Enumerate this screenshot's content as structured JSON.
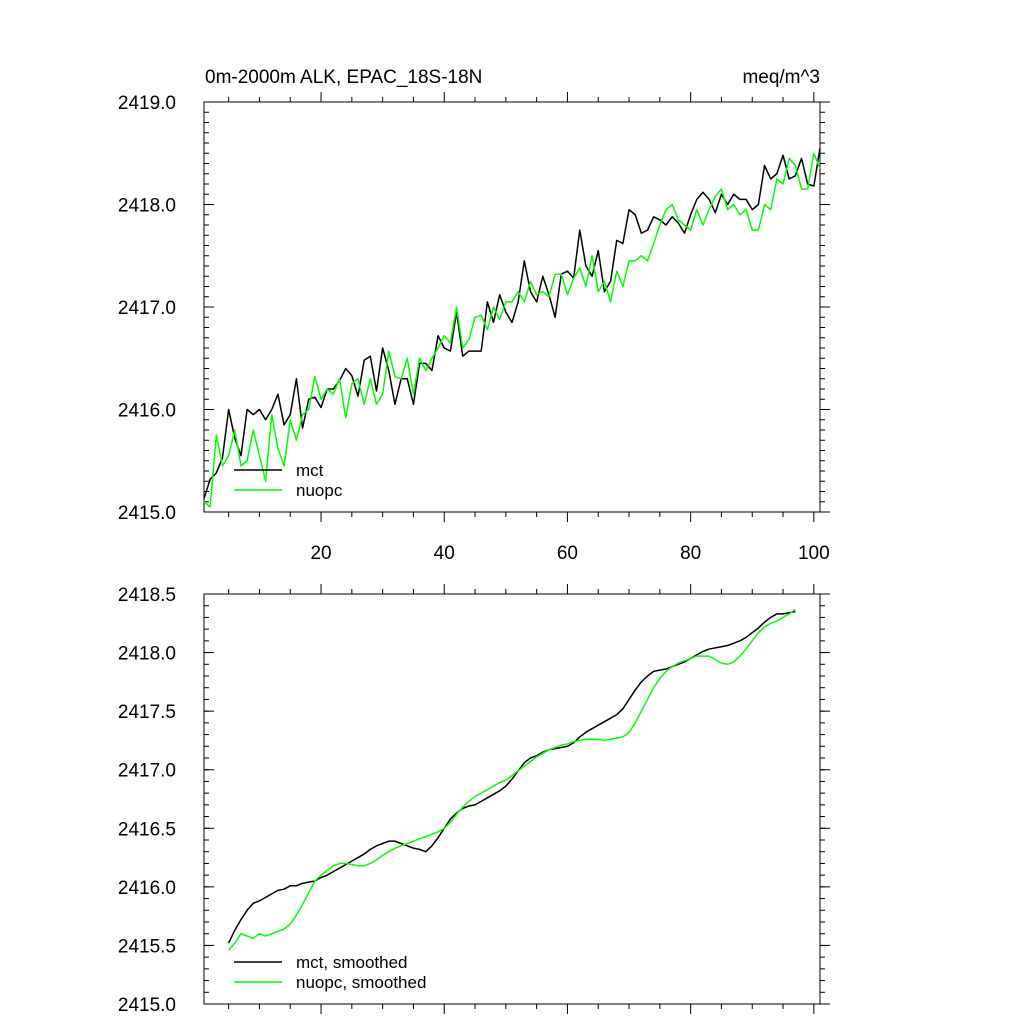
{
  "chart_data": [
    {
      "type": "line",
      "title": "0m-2000m ALK, EPAC_18S-18N",
      "units": "meq/m^3",
      "xlim": [
        1,
        101
      ],
      "ylim": [
        2415.0,
        2419.0
      ],
      "xticks": [
        20,
        40,
        60,
        80,
        100
      ],
      "yticks": [
        "2415.0",
        "2416.0",
        "2417.0",
        "2418.0",
        "2419.0"
      ],
      "legend_position": "bottom-left",
      "series": [
        {
          "name": "mct",
          "color": "#000000",
          "values": [
            2415.13,
            2415.32,
            2415.38,
            2415.53,
            2416.0,
            2415.72,
            2415.55,
            2416.0,
            2415.95,
            2416.0,
            2415.9,
            2416.0,
            2416.15,
            2415.85,
            2415.95,
            2416.3,
            2415.82,
            2416.1,
            2416.12,
            2416.02,
            2416.2,
            2416.2,
            2416.28,
            2416.4,
            2416.33,
            2416.13,
            2416.48,
            2416.52,
            2416.18,
            2416.6,
            2416.38,
            2416.05,
            2416.3,
            2416.3,
            2416.05,
            2416.45,
            2416.45,
            2416.38,
            2416.72,
            2416.6,
            2416.57,
            2416.95,
            2416.52,
            2416.57,
            2416.57,
            2416.57,
            2417.05,
            2416.85,
            2417.12,
            2416.95,
            2416.85,
            2417.05,
            2417.45,
            2417.15,
            2417.05,
            2417.3,
            2417.12,
            2416.9,
            2417.32,
            2417.35,
            2417.28,
            2417.75,
            2417.4,
            2417.3,
            2417.55,
            2417.15,
            2417.25,
            2417.65,
            2417.62,
            2417.95,
            2417.9,
            2417.72,
            2417.75,
            2417.88,
            2417.85,
            2417.8,
            2417.88,
            2417.82,
            2417.72,
            2417.9,
            2418.05,
            2418.12,
            2418.05,
            2417.92,
            2418.1,
            2418.0,
            2418.1,
            2418.05,
            2418.05,
            2417.95,
            2418.0,
            2418.38,
            2418.25,
            2418.3,
            2418.48,
            2418.25,
            2418.28,
            2418.45,
            2418.2,
            2418.18,
            2418.55
          ]
        },
        {
          "name": "nuopc",
          "color": "#00ff00",
          "values": [
            2415.1,
            2415.05,
            2415.75,
            2415.45,
            2415.55,
            2415.8,
            2415.45,
            2415.5,
            2415.8,
            2415.55,
            2415.3,
            2415.95,
            2415.62,
            2415.45,
            2415.9,
            2415.7,
            2415.95,
            2416.0,
            2416.32,
            2416.1,
            2416.2,
            2416.15,
            2416.3,
            2415.92,
            2416.25,
            2416.3,
            2416.05,
            2416.3,
            2416.05,
            2416.15,
            2416.57,
            2416.32,
            2416.3,
            2416.5,
            2416.15,
            2416.5,
            2416.38,
            2416.5,
            2416.6,
            2416.72,
            2416.65,
            2417.0,
            2416.6,
            2416.68,
            2416.9,
            2416.92,
            2416.78,
            2417.0,
            2416.88,
            2417.05,
            2417.05,
            2417.15,
            2417.05,
            2417.25,
            2417.12,
            2417.15,
            2417.1,
            2417.32,
            2417.32,
            2417.12,
            2417.28,
            2417.38,
            2417.2,
            2417.5,
            2417.15,
            2417.25,
            2417.05,
            2417.35,
            2417.2,
            2417.45,
            2417.45,
            2417.5,
            2417.45,
            2417.62,
            2417.8,
            2417.95,
            2418.0,
            2417.85,
            2417.8,
            2417.75,
            2417.95,
            2417.8,
            2417.95,
            2418.08,
            2418.15,
            2417.95,
            2418.0,
            2417.9,
            2417.95,
            2417.75,
            2417.75,
            2418.0,
            2417.95,
            2418.25,
            2418.2,
            2418.45,
            2418.38,
            2418.15,
            2418.15,
            2418.5,
            2418.35
          ]
        }
      ]
    },
    {
      "type": "line",
      "xlim": [
        1,
        101
      ],
      "ylim": [
        2415.0,
        2418.5
      ],
      "yticks": [
        "2415.0",
        "2415.5",
        "2416.0",
        "2416.5",
        "2417.0",
        "2417.5",
        "2418.0",
        "2418.5"
      ],
      "legend_position": "bottom-left",
      "series": [
        {
          "name": "mct, smoothed",
          "color": "#000000",
          "x_start": 5,
          "values": [
            2415.52,
            2415.63,
            2415.72,
            2415.8,
            2415.86,
            2415.88,
            2415.91,
            2415.94,
            2415.97,
            2415.98,
            2416.01,
            2416.01,
            2416.03,
            2416.04,
            2416.05,
            2416.08,
            2416.1,
            2416.13,
            2416.16,
            2416.19,
            2416.22,
            2416.25,
            2416.28,
            2416.32,
            2416.35,
            2416.37,
            2416.39,
            2416.39,
            2416.37,
            2416.35,
            2416.33,
            2416.32,
            2416.3,
            2416.35,
            2416.42,
            2416.5,
            2416.58,
            2416.63,
            2416.67,
            2416.69,
            2416.7,
            2416.73,
            2416.76,
            2416.79,
            2416.82,
            2416.86,
            2416.92,
            2416.99,
            2417.06,
            2417.1,
            2417.12,
            2417.15,
            2417.17,
            2417.18,
            2417.19,
            2417.2,
            2417.23,
            2417.28,
            2417.32,
            2417.35,
            2417.38,
            2417.41,
            2417.44,
            2417.47,
            2417.52,
            2417.6,
            2417.68,
            2417.75,
            2417.8,
            2417.84,
            2417.85,
            2417.86,
            2417.88,
            2417.9,
            2417.92,
            2417.95,
            2417.98,
            2418.01,
            2418.03,
            2418.04,
            2418.05,
            2418.06,
            2418.08,
            2418.1,
            2418.13,
            2418.17,
            2418.21,
            2418.26,
            2418.3,
            2418.33,
            2418.33,
            2418.34,
            2418.35
          ]
        },
        {
          "name": "nuopc, smoothed",
          "color": "#00ff00",
          "x_start": 5,
          "values": [
            2415.46,
            2415.52,
            2415.6,
            2415.58,
            2415.56,
            2415.6,
            2415.58,
            2415.6,
            2415.62,
            2415.64,
            2415.68,
            2415.76,
            2415.85,
            2415.95,
            2416.05,
            2416.1,
            2416.14,
            2416.18,
            2416.2,
            2416.2,
            2416.19,
            2416.18,
            2416.18,
            2416.2,
            2416.23,
            2416.27,
            2416.3,
            2416.33,
            2416.35,
            2416.37,
            2416.39,
            2416.41,
            2416.43,
            2416.45,
            2416.47,
            2416.5,
            2416.55,
            2416.62,
            2416.68,
            2416.73,
            2416.77,
            2416.8,
            2416.83,
            2416.86,
            2416.89,
            2416.91,
            2416.95,
            2416.99,
            2417.03,
            2417.07,
            2417.11,
            2417.14,
            2417.17,
            2417.19,
            2417.21,
            2417.22,
            2417.24,
            2417.25,
            2417.26,
            2417.26,
            2417.26,
            2417.25,
            2417.26,
            2417.27,
            2417.28,
            2417.32,
            2417.4,
            2417.5,
            2417.6,
            2417.7,
            2417.78,
            2417.84,
            2417.88,
            2417.91,
            2417.93,
            2417.95,
            2417.97,
            2417.97,
            2417.97,
            2417.94,
            2417.91,
            2417.9,
            2417.92,
            2417.97,
            2418.03,
            2418.1,
            2418.17,
            2418.22,
            2418.25,
            2418.27,
            2418.3,
            2418.33,
            2418.37
          ]
        }
      ]
    }
  ]
}
